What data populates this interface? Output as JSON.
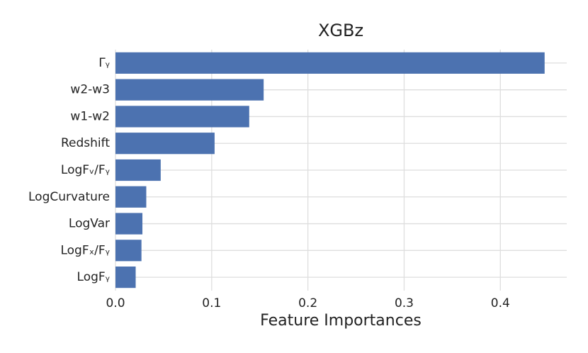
{
  "chart_data": {
    "type": "barh",
    "title": "XGBz",
    "xlabel": "Feature Importances",
    "categories": [
      "Γᵧ",
      "w2-w3",
      "w1-w2",
      "Redshift",
      "LogFᵥ/Fᵧ",
      "LogCurvature",
      "LogVar",
      "LogFₓ/Fᵧ",
      "LogFᵧ"
    ],
    "values": [
      0.446,
      0.154,
      0.139,
      0.103,
      0.047,
      0.032,
      0.028,
      0.027,
      0.021
    ],
    "color": "#4c72b0",
    "xlim": [
      0,
      0.469
    ],
    "xticks": [
      {
        "value": 0,
        "label": "0.0"
      },
      0.1,
      0.2,
      0.3,
      0.4
    ],
    "grid": true
  }
}
